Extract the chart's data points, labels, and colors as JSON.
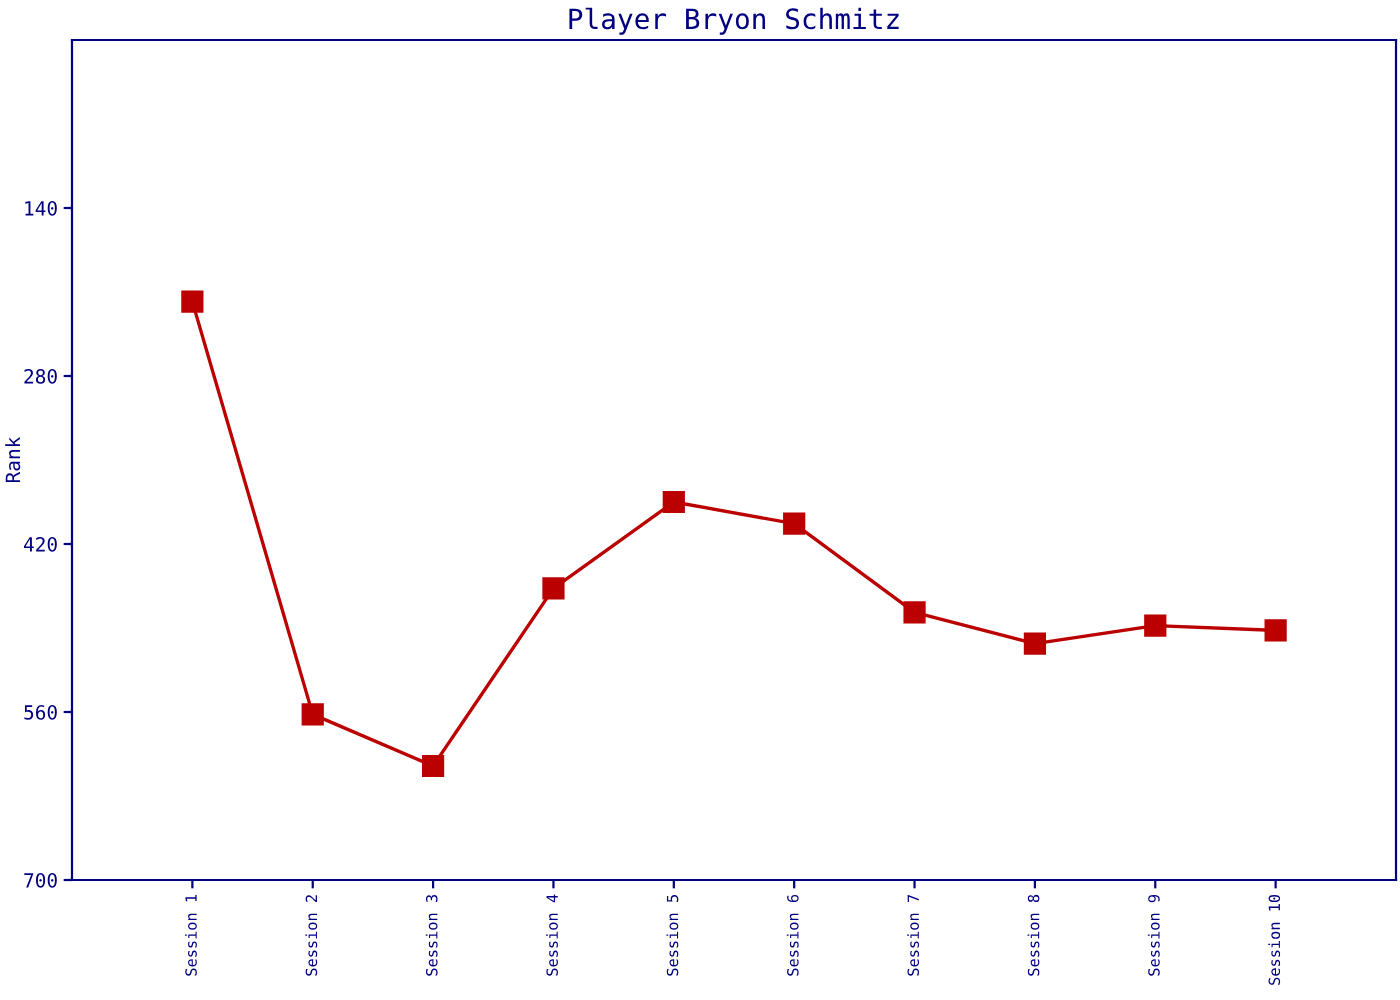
{
  "chart_data": {
    "type": "line",
    "title": "Player Bryon Schmitz",
    "ylabel": "Rank",
    "categories": [
      "Session 1",
      "Session 2",
      "Session 3",
      "Session 4",
      "Session 5",
      "Session 6",
      "Session 7",
      "Session 8",
      "Session 9",
      "Session 10"
    ],
    "series": [
      {
        "color": "#bb0000",
        "values": [
          218,
          562,
          605,
          457,
          385,
          403,
          477,
          503,
          488,
          492
        ]
      }
    ],
    "ylim": [
      700,
      0
    ],
    "yticks": [
      140,
      280,
      420,
      560,
      700
    ],
    "grid": false,
    "marker": "square",
    "line_style": "solid"
  }
}
